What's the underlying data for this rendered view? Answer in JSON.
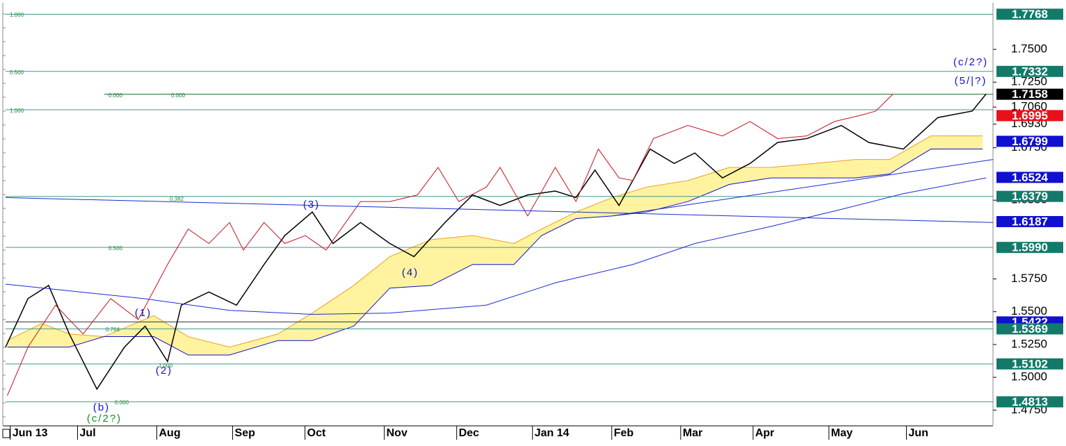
{
  "chart_data": {
    "type": "ichimoku",
    "xlim": [
      0,
      57.3
    ],
    "xticks": [
      {
        "value": 0.6,
        "label": "Jun 13"
      },
      {
        "value": 4.5,
        "label": "Jul"
      },
      {
        "value": 9.1,
        "label": "Aug"
      },
      {
        "value": 13.5,
        "label": "Sep"
      },
      {
        "value": 17.7,
        "label": "Oct"
      },
      {
        "value": 22.3,
        "label": "Nov"
      },
      {
        "value": 26.5,
        "label": "Dec"
      },
      {
        "value": 30.9,
        "label": "Jan 14"
      },
      {
        "value": 35.5,
        "label": "Feb"
      },
      {
        "value": 39.5,
        "label": "Mar"
      },
      {
        "value": 43.7,
        "label": "Apr"
      },
      {
        "value": 48.1,
        "label": "May"
      },
      {
        "value": 52.6,
        "label": "Jun"
      }
    ],
    "ylim": [
      1.4635,
      1.7834
    ],
    "yticks": [
      {
        "value": 1.75,
        "label": "1.7500"
      },
      {
        "value": 1.725,
        "label": "1.7250"
      },
      {
        "value": 1.706,
        "label": "1.7060"
      },
      {
        "value": 1.693,
        "label": "1.6930"
      },
      {
        "value": 1.675,
        "label": "1.6750"
      },
      {
        "value": 1.635,
        "label": "1.6350"
      },
      {
        "value": 1.575,
        "label": "1.5750"
      },
      {
        "value": 1.55,
        "label": "1.5500"
      },
      {
        "value": 1.525,
        "label": "1.5250"
      },
      {
        "value": 1.5,
        "label": "1.5000"
      },
      {
        "value": 1.475,
        "label": "1.4750"
      }
    ],
    "price_levels": [
      {
        "value": 1.7768,
        "label": "1.7768",
        "color": "#137a6a",
        "line": true
      },
      {
        "value": 1.7332,
        "label": "1.7332",
        "color": "#137a6a",
        "line": true
      },
      {
        "value": 1.7158,
        "label": "1.7158",
        "color": "#000000",
        "line": true
      },
      {
        "value": 1.6995,
        "label": "1.6995",
        "color": "#e8101a",
        "line": false
      },
      {
        "value": 1.6799,
        "label": "1.6799",
        "color": "#1010d0",
        "line": false
      },
      {
        "value": 1.6524,
        "label": "1.6524",
        "color": "#1010d0",
        "line": false
      },
      {
        "value": 1.6379,
        "label": "1.6379",
        "color": "#137a6a",
        "line": true
      },
      {
        "value": 1.6187,
        "label": "1.6187",
        "color": "#1010d0",
        "line": false
      },
      {
        "value": 1.599,
        "label": "1.5990",
        "color": "#137a6a",
        "line": true
      },
      {
        "value": 1.5422,
        "label": "1.5422",
        "color": "#1010d0",
        "line": true
      },
      {
        "value": 1.5369,
        "label": "1.5369",
        "color": "#137a6a",
        "line": true
      },
      {
        "value": 1.5102,
        "label": "1.5102",
        "color": "#137a6a",
        "line": true
      },
      {
        "value": 1.4813,
        "label": "1.4813",
        "color": "#137a6a",
        "line": true
      }
    ],
    "cloud": {
      "x": [
        0.1,
        2.1,
        3.7,
        5.7,
        8.6,
        10.6,
        13,
        15.8,
        17.8,
        20.2,
        22.3,
        24.7,
        27.1,
        29.5,
        31.1,
        33.1,
        35.2,
        37.2,
        39.6,
        42,
        44.4,
        46.9,
        49.3,
        51.3,
        53.7,
        56.7
      ],
      "upper": [
        1.528,
        1.541,
        1.533,
        1.531,
        1.547,
        1.531,
        1.523,
        1.533,
        1.549,
        1.57,
        1.592,
        1.605,
        1.608,
        1.602,
        1.613,
        1.626,
        1.637,
        1.645,
        1.65,
        1.66,
        1.66,
        1.663,
        1.666,
        1.666,
        1.684,
        1.684
      ],
      "lower": [
        1.523,
        1.523,
        1.523,
        1.531,
        1.531,
        1.517,
        1.517,
        1.528,
        1.528,
        1.539,
        1.568,
        1.57,
        1.586,
        1.586,
        1.608,
        1.621,
        1.623,
        1.626,
        1.634,
        1.647,
        1.652,
        1.652,
        1.652,
        1.655,
        1.674,
        1.674
      ],
      "upper_color": "#e8a020",
      "lower_color": "#1010d0",
      "fill": "#fff3a0"
    },
    "series": [
      {
        "name": "price",
        "color": "#000000",
        "x": [
          0,
          1.3,
          2.5,
          3.7,
          5.3,
          6.9,
          8.1,
          9.4,
          10.2,
          11.8,
          13.4,
          15,
          16.2,
          17.8,
          19,
          20.6,
          22.3,
          23.7,
          25.5,
          27.1,
          28.7,
          30.3,
          31.9,
          33.1,
          34.2,
          35.6,
          37.4,
          38.8,
          40,
          41.6,
          43.2,
          44.8,
          46.5,
          48.5,
          50.1,
          52.1,
          54.1,
          56.1,
          56.9
        ],
        "values": [
          1.523,
          1.56,
          1.57,
          1.533,
          1.491,
          1.523,
          1.539,
          1.512,
          1.555,
          1.565,
          1.555,
          1.586,
          1.608,
          1.626,
          1.602,
          1.618,
          1.602,
          1.592,
          1.618,
          1.639,
          1.631,
          1.639,
          1.642,
          1.637,
          1.658,
          1.631,
          1.674,
          1.663,
          1.671,
          1.652,
          1.663,
          1.679,
          1.682,
          1.692,
          1.679,
          1.674,
          1.698,
          1.703,
          1.716
        ]
      },
      {
        "name": "lagging",
        "color": "#c8101a",
        "x": [
          0.1,
          1.3,
          2.9,
          4.5,
          6.1,
          7.7,
          9.4,
          10.6,
          11.8,
          13,
          13.8,
          15,
          16.2,
          17.4,
          18.6,
          20.6,
          22.3,
          23.9,
          25.1,
          26.3,
          27.9,
          28.7,
          30.3,
          31.9,
          33.1,
          34.4,
          35.6,
          36.4,
          37.6,
          39.6,
          41.6,
          43.2,
          44.8,
          46.5,
          48.1,
          49.7,
          50.5,
          51.5
        ],
        "values": [
          1.486,
          1.523,
          1.555,
          1.533,
          1.56,
          1.544,
          1.586,
          1.613,
          1.602,
          1.618,
          1.597,
          1.618,
          1.602,
          1.608,
          1.597,
          1.634,
          1.634,
          1.639,
          1.66,
          1.634,
          1.645,
          1.66,
          1.623,
          1.66,
          1.634,
          1.674,
          1.652,
          1.65,
          1.682,
          1.692,
          1.684,
          1.695,
          1.682,
          1.684,
          1.695,
          1.7,
          1.703,
          1.716
        ]
      },
      {
        "name": "ma-long",
        "color": "#1a2ad0",
        "x": [
          0,
          8,
          13,
          17.8,
          22.3,
          27.9,
          31.9,
          36.4,
          40,
          44.4,
          48.5,
          52.1,
          56.9
        ],
        "values": [
          1.571,
          1.56,
          1.551,
          1.548,
          1.549,
          1.555,
          1.572,
          1.586,
          1.602,
          1.615,
          1.628,
          1.64,
          1.652
        ]
      },
      {
        "name": "ma-flat",
        "color": "#1a2ad0",
        "x": [
          0,
          57.3
        ],
        "values": [
          1.637,
          1.618
        ]
      },
      {
        "name": "trendline",
        "color": "#1a2ad0",
        "x": [
          35.2,
          57.3
        ],
        "values": [
          1.623,
          1.666
        ]
      }
    ],
    "annotations": [
      {
        "text": "(1)",
        "color": "#1010d0"
      },
      {
        "text": "(2)",
        "color": "#1010d0"
      },
      {
        "text": "(3)",
        "color": "#1010d0"
      },
      {
        "text": "(4)",
        "color": "#1010d0"
      },
      {
        "text": "(b)",
        "color": "#1010d0"
      },
      {
        "text": "(c/2?)",
        "color": "#109020"
      },
      {
        "text": "(c/2?)",
        "color": "#1010d0"
      },
      {
        "text": "(5/|?)",
        "color": "#1010d0"
      }
    ],
    "fib_labels": [
      "1.000",
      "0.500",
      "1.000",
      "0.000",
      "0.000",
      "0.382",
      "0.500",
      "0.764",
      "1.000",
      "0.000"
    ]
  }
}
